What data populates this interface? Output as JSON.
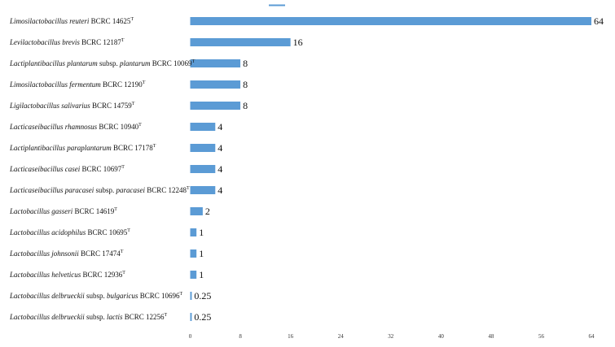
{
  "chart_data": {
    "type": "bar",
    "orientation": "horizontal",
    "bar_color": "#5b9bd5",
    "legend": {
      "placement": "top-center",
      "entries": [
        ""
      ]
    },
    "xlim": [
      0,
      64
    ],
    "xticks": [
      0,
      8,
      16,
      24,
      32,
      40,
      48,
      56,
      64
    ],
    "grid": false,
    "categories": [
      {
        "parts": [
          {
            "text": "Limosilactobacillus reuteri",
            "italic": true
          },
          {
            "text": " BCRC 14625",
            "italic": false
          },
          {
            "text": "T",
            "sup": true
          }
        ]
      },
      {
        "parts": [
          {
            "text": "Levilactobacillus brevis",
            "italic": true
          },
          {
            "text": " BCRC 12187",
            "italic": false
          },
          {
            "text": "T",
            "sup": true
          }
        ]
      },
      {
        "parts": [
          {
            "text": "Lactiplantibacillus plantarum",
            "italic": true
          },
          {
            "text": " subsp. ",
            "italic": false
          },
          {
            "text": "plantarum",
            "italic": true
          },
          {
            "text": " BCRC 10069",
            "italic": false
          },
          {
            "text": "T",
            "sup": true
          }
        ]
      },
      {
        "parts": [
          {
            "text": "Limosilactobacillus fermentum",
            "italic": true
          },
          {
            "text": " BCRC 12190",
            "italic": false
          },
          {
            "text": "T",
            "sup": true
          }
        ]
      },
      {
        "parts": [
          {
            "text": "Ligilactobacillus salivarius",
            "italic": true
          },
          {
            "text": " BCRC 14759",
            "italic": false
          },
          {
            "text": "T",
            "sup": true
          }
        ]
      },
      {
        "parts": [
          {
            "text": "Lacticaseibacillus rhamnosus",
            "italic": true
          },
          {
            "text": " BCRC 10940",
            "italic": false
          },
          {
            "text": "T",
            "sup": true
          }
        ]
      },
      {
        "parts": [
          {
            "text": "Lactiplantibacillus paraplantarum",
            "italic": true
          },
          {
            "text": " BCRC 17178",
            "italic": false
          },
          {
            "text": "T",
            "sup": true
          }
        ]
      },
      {
        "parts": [
          {
            "text": "Lacticaseibacillus casei",
            "italic": true
          },
          {
            "text": " BCRC 10697",
            "italic": false
          },
          {
            "text": "T",
            "sup": true
          }
        ]
      },
      {
        "parts": [
          {
            "text": "Lacticaseibacillus paracasei",
            "italic": true
          },
          {
            "text": " subsp. ",
            "italic": false
          },
          {
            "text": "paracasei",
            "italic": true
          },
          {
            "text": " BCRC 12248",
            "italic": false
          },
          {
            "text": "T",
            "sup": true
          }
        ]
      },
      {
        "parts": [
          {
            "text": "Lactobacillus gasseri",
            "italic": true
          },
          {
            "text": " BCRC 14619",
            "italic": false
          },
          {
            "text": "T",
            "sup": true
          }
        ]
      },
      {
        "parts": [
          {
            "text": "Lactobacillus acidophilus",
            "italic": true
          },
          {
            "text": " BCRC 10695",
            "italic": false
          },
          {
            "text": "T",
            "sup": true
          }
        ]
      },
      {
        "parts": [
          {
            "text": "Lactobacillus johnsonii",
            "italic": true
          },
          {
            "text": " BCRC 17474",
            "italic": false
          },
          {
            "text": "T",
            "sup": true
          }
        ]
      },
      {
        "parts": [
          {
            "text": "Lactobacillus helveticus",
            "italic": true
          },
          {
            "text": " BCRC 12936",
            "italic": false
          },
          {
            "text": "T",
            "sup": true
          }
        ]
      },
      {
        "parts": [
          {
            "text": "Lactobacillus delbrueckii",
            "italic": true
          },
          {
            "text": " subsp. ",
            "italic": false
          },
          {
            "text": "bulgaricus",
            "italic": true
          },
          {
            "text": " BCRC 10696",
            "italic": false
          },
          {
            "text": "T",
            "sup": true
          }
        ]
      },
      {
        "parts": [
          {
            "text": "Lactobacillus delbrueckii",
            "italic": true
          },
          {
            "text": " subsp. ",
            "italic": false
          },
          {
            "text": "lactis",
            "italic": true
          },
          {
            "text": " BCRC 12256",
            "italic": false
          },
          {
            "text": "T",
            "sup": true
          }
        ]
      }
    ],
    "values": [
      64,
      16,
      8,
      8,
      8,
      4,
      4,
      4,
      4,
      2,
      1,
      1,
      1,
      0.25,
      0.25
    ],
    "value_labels": [
      "64",
      "16",
      "8",
      "8",
      "8",
      "4",
      "4",
      "4",
      "4",
      "2",
      "1",
      "1",
      "1",
      "0.25",
      "0.25"
    ]
  }
}
